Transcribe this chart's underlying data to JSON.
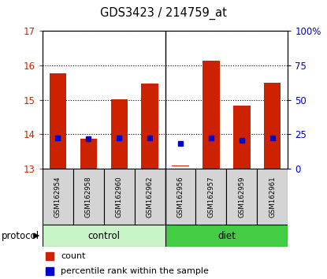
{
  "title": "GDS3423 / 214759_at",
  "samples": [
    "GSM162954",
    "GSM162958",
    "GSM162960",
    "GSM162962",
    "GSM162956",
    "GSM162957",
    "GSM162959",
    "GSM162961"
  ],
  "groups": [
    "control",
    "control",
    "control",
    "control",
    "diet",
    "diet",
    "diet",
    "diet"
  ],
  "red_bottom": [
    13.0,
    13.0,
    13.0,
    13.0,
    13.08,
    13.0,
    13.0,
    13.0
  ],
  "red_top": [
    15.76,
    13.88,
    15.01,
    15.48,
    13.1,
    16.12,
    14.82,
    15.5
  ],
  "blue_y": [
    13.9,
    13.87,
    13.9,
    13.9,
    13.73,
    13.9,
    13.82,
    13.9
  ],
  "ylim_left": [
    13,
    17
  ],
  "ylim_right": [
    0,
    100
  ],
  "yticks_left": [
    13,
    14,
    15,
    16,
    17
  ],
  "yticks_right": [
    0,
    25,
    50,
    75,
    100
  ],
  "ytick_labels_right": [
    "0",
    "25",
    "50",
    "75",
    "100%"
  ],
  "bar_width": 0.55,
  "red_color": "#cc2200",
  "blue_color": "#0000cc",
  "tick_color_left": "#cc2200",
  "tick_color_right": "#0000cc",
  "control_color": "#c8f5c8",
  "diet_color": "#44cc44",
  "sample_bg": "#d4d4d4"
}
